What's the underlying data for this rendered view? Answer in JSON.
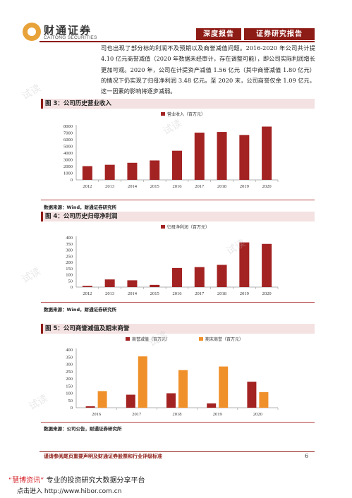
{
  "header": {
    "logo_cn": "财通证券",
    "logo_en": "CAITONG SECURITIES",
    "tab_left": "深度报告",
    "tab_right": "证券研究报告"
  },
  "paragraph": "司也出现了部分标的利润不及预期以及商誉减值问题。2016-2020 年公司共计提 4.10 亿元商誉减值（2020 年数据未经审计，存在调整可能），即公司实际利润增长更加可观。2020 年，公司在计提资产减值 1.56 亿元（其中商誉减值 1.80 亿元）的情况下仍实现了归母净利润 3.48 亿元。至 2020 末，公司商誉仅余 1.09 亿元，这一因素的影响将逐步减弱。",
  "figures": [
    {
      "title": "图 3：公司历史营业收入",
      "source": "数据来源：Wind，财通证券研究所"
    },
    {
      "title": "图 4：公司历史归母净利润",
      "source": "数据来源：Wind，财通证券研究所"
    },
    {
      "title": "图 5：公司商誉减值及期末商誉",
      "source": "数据来源：公司公告，财通证券研究所"
    }
  ],
  "chart_data": [
    {
      "type": "bar",
      "categories": [
        "2012",
        "2013",
        "2014",
        "2015",
        "2016",
        "2017",
        "2018",
        "2019",
        "2020"
      ],
      "series": [
        {
          "name": "营业收入（百万元）",
          "values": [
            2050,
            2250,
            2550,
            2900,
            4350,
            7050,
            7150,
            6700,
            7950
          ]
        }
      ],
      "ylim": [
        0,
        8000
      ],
      "yticks": [
        0,
        1000,
        2000,
        3000,
        4000,
        5000,
        6000,
        7000,
        8000
      ],
      "colors": [
        "#a32323"
      ]
    },
    {
      "type": "bar",
      "categories": [
        "2012",
        "2013",
        "2014",
        "2015",
        "2016",
        "2017",
        "2018",
        "2019",
        "2020"
      ],
      "series": [
        {
          "name": "归母净利润（百万元）",
          "values": [
            10,
            62,
            55,
            18,
            155,
            162,
            180,
            362,
            350
          ]
        }
      ],
      "ylim": [
        0,
        400
      ],
      "yticks": [
        0,
        50,
        100,
        150,
        200,
        250,
        300,
        350,
        400
      ],
      "colors": [
        "#a32323"
      ]
    },
    {
      "type": "bar",
      "categories": [
        "2016",
        "2017",
        "2018",
        "2019",
        "2020"
      ],
      "series": [
        {
          "name": "商誉减值（百万元）",
          "values": [
            10,
            90,
            100,
            30,
            180
          ]
        },
        {
          "name": "期末商誉（百万元）",
          "values": [
            115,
            355,
            260,
            285,
            108
          ]
        }
      ],
      "ylim": [
        0,
        400
      ],
      "yticks": [
        0,
        50,
        100,
        150,
        200,
        250,
        300,
        350,
        400
      ],
      "colors": [
        "#a32323",
        "#f0902a"
      ]
    }
  ],
  "footer": {
    "note": "谨请参阅尾页重要声明及财通证券股票和行业评级标准",
    "page": "6"
  },
  "banner": {
    "brand": "“慧博资讯”",
    "line1_rest": "专业的投资研究大数据分享平台",
    "line2": "点击进入 http://www.hibor.com.cn"
  },
  "watermark": "试读"
}
